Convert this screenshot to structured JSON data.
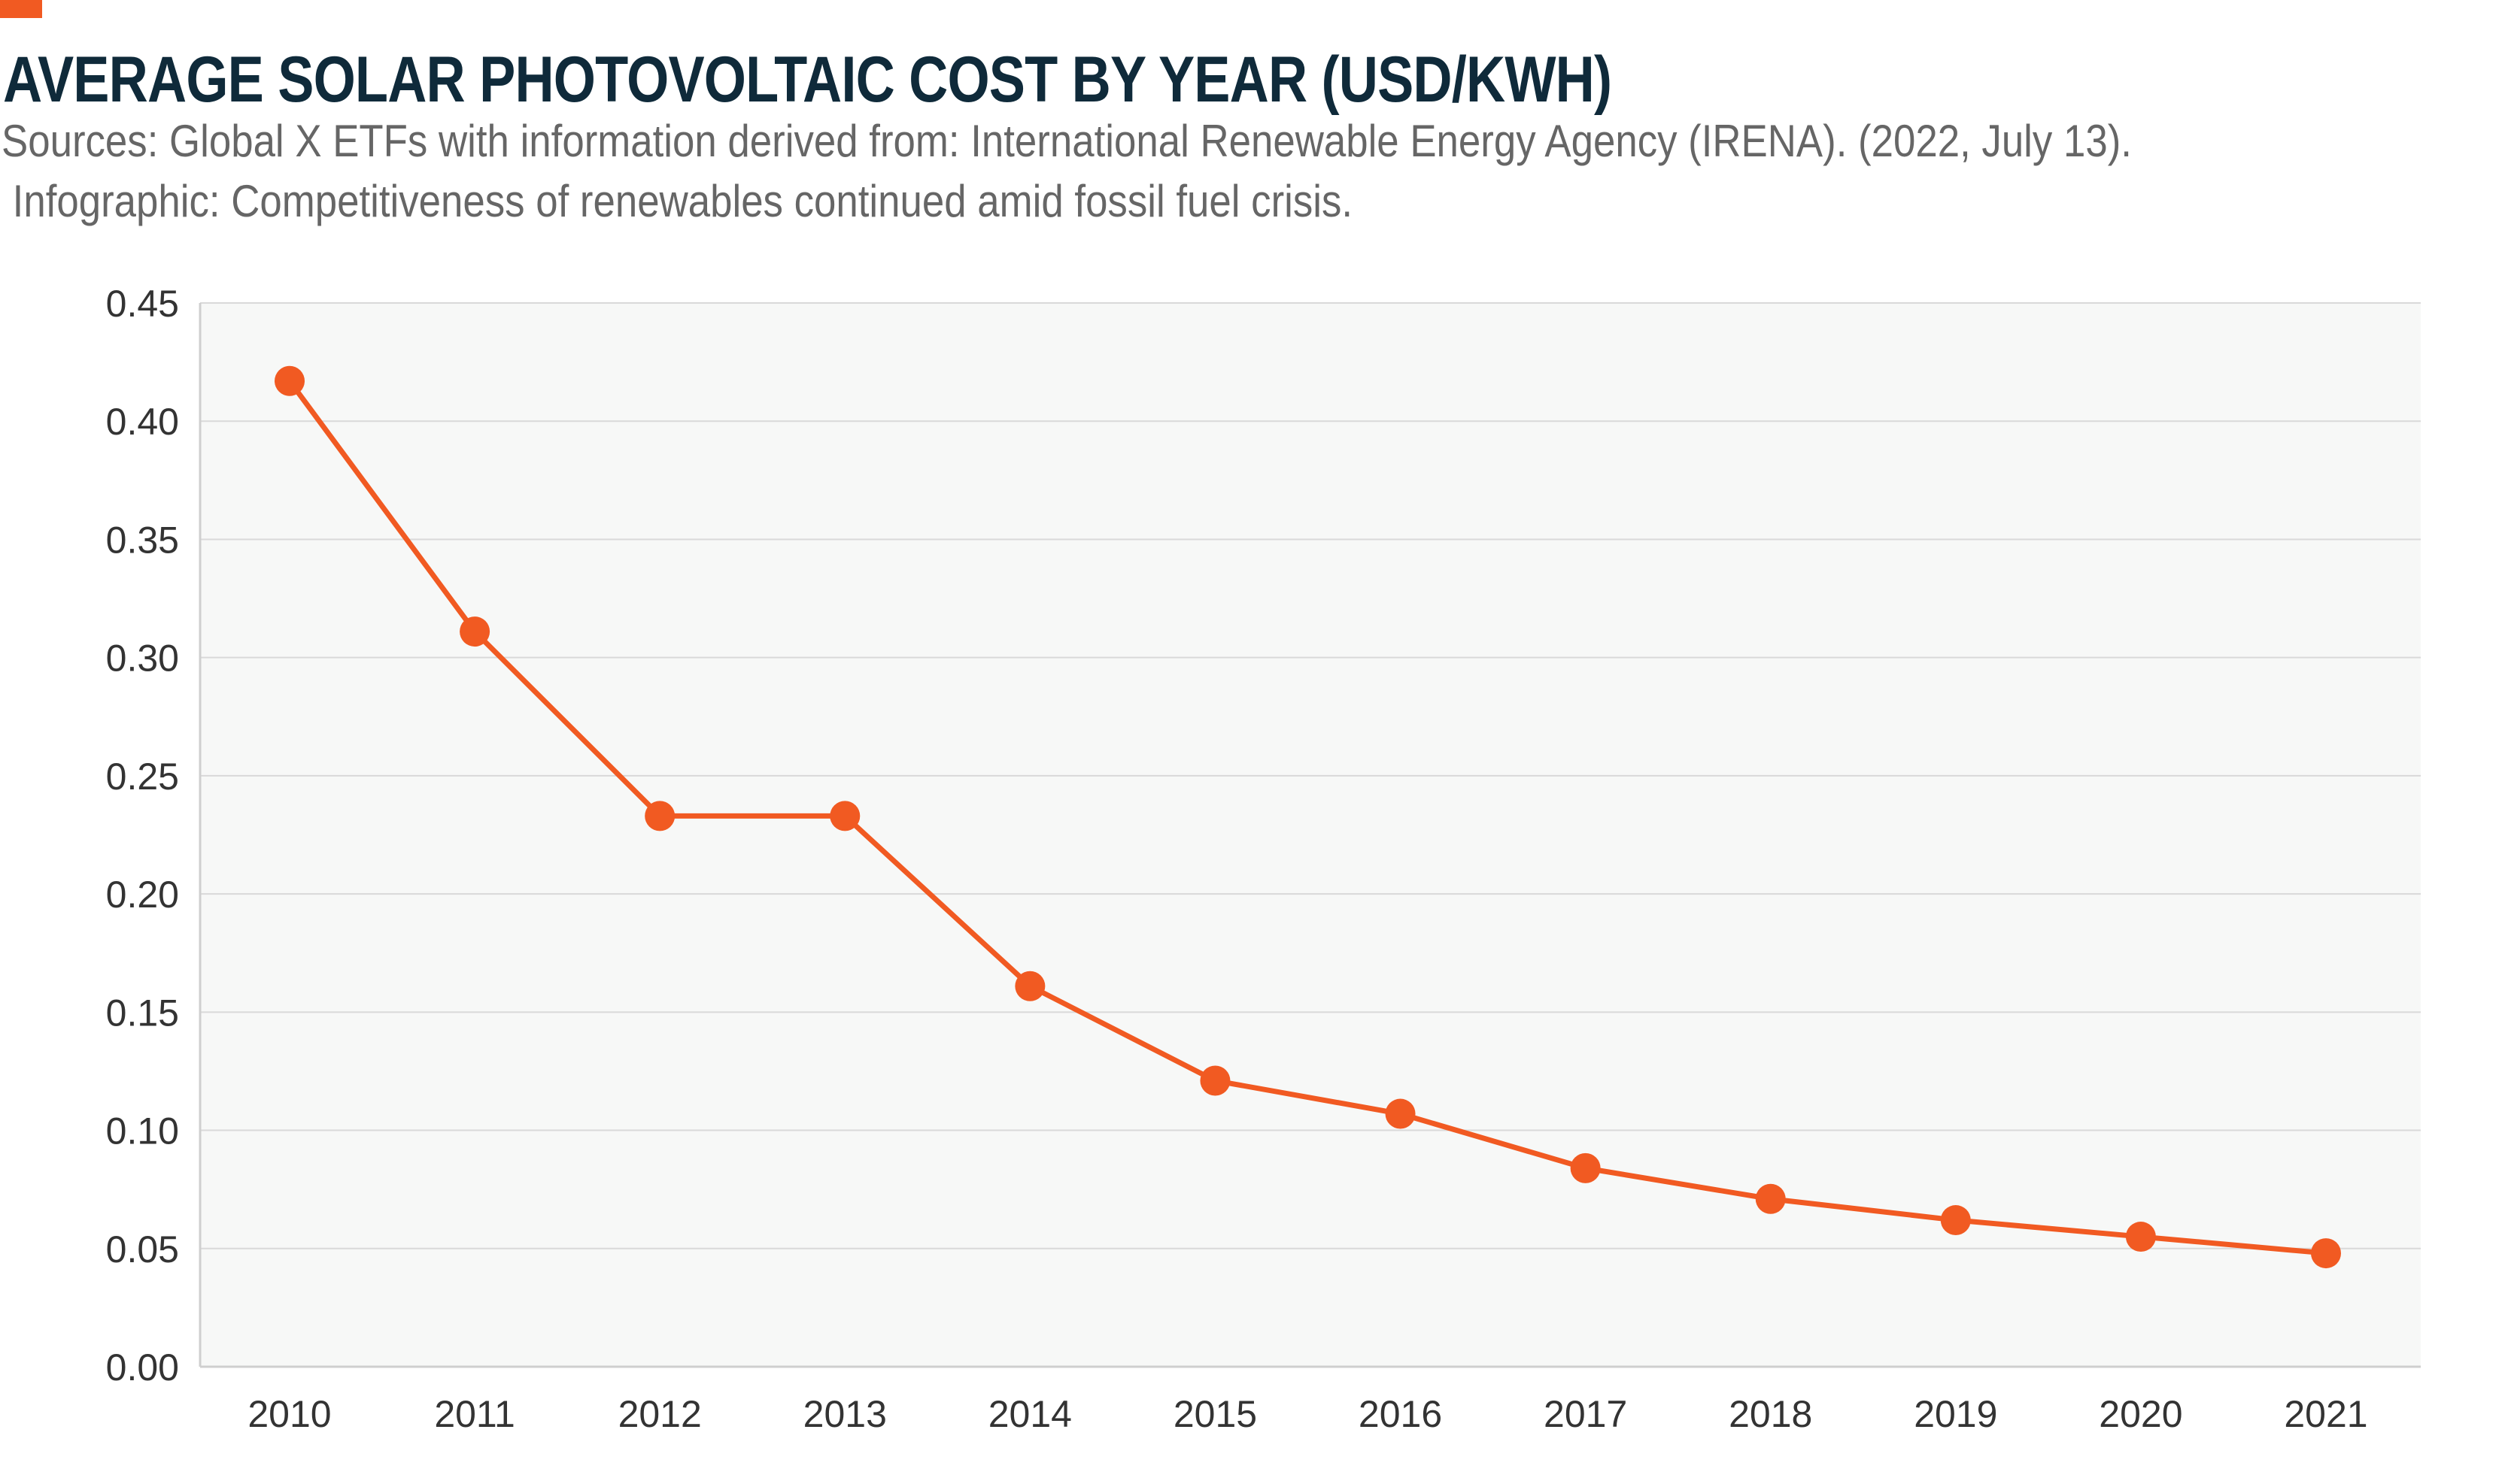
{
  "header": {
    "title": "AVERAGE SOLAR PHOTOVOLTAIC COST BY YEAR (USD/KWH)",
    "source_line_1": "Sources: Global X ETFs with information derived from: International Renewable Energy Agency (IRENA). (2022, July 13).",
    "source_line_2": " Infographic: Competitiveness of renewables continued amid fossil fuel crisis."
  },
  "colors": {
    "accent": "#f15a22",
    "line": "#f15a22",
    "title": "#0f2a3a",
    "plot_background": "#f7f8f7",
    "grid": "#d9d9d9",
    "tick_text": "#333333"
  },
  "chart_data": {
    "type": "line",
    "title": "AVERAGE SOLAR PHOTOVOLTAIC COST BY YEAR (USD/KWH)",
    "xlabel": "",
    "ylabel": "",
    "categories": [
      "2010",
      "2011",
      "2012",
      "2013",
      "2014",
      "2015",
      "2016",
      "2017",
      "2018",
      "2019",
      "2020",
      "2021"
    ],
    "series": [
      {
        "values": [
          0.417,
          0.311,
          0.233,
          0.233,
          0.161,
          0.121,
          0.107,
          0.084,
          0.071,
          0.062,
          0.055,
          0.048
        ]
      }
    ],
    "ylim": [
      0,
      0.45
    ],
    "yticks": [
      "0.00",
      "0.05",
      "0.10",
      "0.15",
      "0.20",
      "0.25",
      "0.30",
      "0.35",
      "0.40",
      "0.45"
    ],
    "grid": true,
    "legend": "none"
  }
}
